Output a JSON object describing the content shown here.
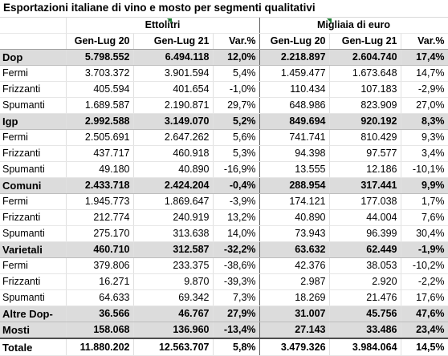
{
  "title": "Esportazioni italiane di vino e mosto per segmenti qualitativi",
  "groups_header": {
    "ettolitri": "Ettolitri",
    "migliaia": "Migliaia di euro"
  },
  "columns": [
    "Gen-Lug 20",
    "Gen-Lug 21",
    "Var.%",
    "Gen-Lug 20",
    "Gen-Lug 21",
    "Var.%"
  ],
  "rows": [
    {
      "type": "group",
      "label": "Dop",
      "v": [
        "5.798.552",
        "6.494.118",
        "12,0%",
        "2.218.897",
        "2.604.740",
        "17,4%"
      ]
    },
    {
      "type": "sub",
      "label": "Fermi",
      "v": [
        "3.703.372",
        "3.901.594",
        "5,4%",
        "1.459.477",
        "1.673.648",
        "14,7%"
      ]
    },
    {
      "type": "sub",
      "label": "Frizzanti",
      "v": [
        "405.594",
        "401.654",
        "-1,0%",
        "110.434",
        "107.183",
        "-2,9%"
      ]
    },
    {
      "type": "sub",
      "label": "Spumanti",
      "v": [
        "1.689.587",
        "2.190.871",
        "29,7%",
        "648.986",
        "823.909",
        "27,0%"
      ]
    },
    {
      "type": "group",
      "label": "Igp",
      "v": [
        "2.992.588",
        "3.149.070",
        "5,2%",
        "849.694",
        "920.192",
        "8,3%"
      ]
    },
    {
      "type": "sub",
      "label": "Fermi",
      "v": [
        "2.505.691",
        "2.647.262",
        "5,6%",
        "741.741",
        "810.429",
        "9,3%"
      ]
    },
    {
      "type": "sub",
      "label": "Frizzanti",
      "v": [
        "437.717",
        "460.918",
        "5,3%",
        "94.398",
        "97.577",
        "3,4%"
      ]
    },
    {
      "type": "sub",
      "label": "Spumanti",
      "v": [
        "49.180",
        "40.890",
        "-16,9%",
        "13.555",
        "12.186",
        "-10,1%"
      ]
    },
    {
      "type": "group",
      "label": "Comuni",
      "v": [
        "2.433.718",
        "2.424.204",
        "-0,4%",
        "288.954",
        "317.441",
        "9,9%"
      ]
    },
    {
      "type": "sub",
      "label": "Fermi",
      "v": [
        "1.945.773",
        "1.869.647",
        "-3,9%",
        "174.121",
        "177.038",
        "1,7%"
      ]
    },
    {
      "type": "sub",
      "label": "Frizzanti",
      "v": [
        "212.774",
        "240.919",
        "13,2%",
        "40.890",
        "44.004",
        "7,6%"
      ]
    },
    {
      "type": "sub",
      "label": "Spumanti",
      "v": [
        "275.170",
        "313.638",
        "14,0%",
        "73.943",
        "96.399",
        "30,4%"
      ]
    },
    {
      "type": "group",
      "label": "Varietali",
      "v": [
        "460.710",
        "312.587",
        "-32,2%",
        "63.632",
        "62.449",
        "-1,9%"
      ]
    },
    {
      "type": "sub",
      "label": "Fermi",
      "v": [
        "379.806",
        "233.375",
        "-38,6%",
        "42.376",
        "38.053",
        "-10,2%"
      ]
    },
    {
      "type": "sub",
      "label": "Frizzanti",
      "v": [
        "16.271",
        "9.870",
        "-39,3%",
        "2.987",
        "2.920",
        "-2,2%"
      ]
    },
    {
      "type": "sub",
      "label": "Spumanti",
      "v": [
        "64.633",
        "69.342",
        "7,3%",
        "18.269",
        "21.476",
        "17,6%"
      ]
    },
    {
      "type": "group",
      "label": "Altre Dop-",
      "v": [
        "36.566",
        "46.767",
        "27,9%",
        "31.007",
        "45.756",
        "47,6%"
      ]
    },
    {
      "type": "group",
      "label": "Mosti",
      "v": [
        "158.068",
        "136.960",
        "-13,4%",
        "27.143",
        "33.486",
        "23,4%"
      ]
    },
    {
      "type": "total",
      "label": "Totale",
      "v": [
        "11.880.202",
        "12.563.707",
        "5,8%",
        "3.479.326",
        "3.984.064",
        "14,5%"
      ]
    }
  ]
}
